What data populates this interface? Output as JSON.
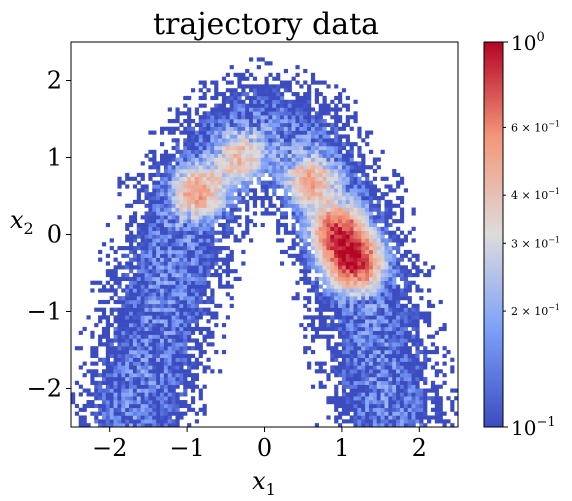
{
  "chart_data": {
    "type": "heatmap",
    "title": "trajectory data",
    "xlabel_base": "x",
    "xlabel_sub": "1",
    "ylabel_base": "x",
    "ylabel_sub": "2",
    "xlim": [
      -2.5,
      2.5
    ],
    "ylim": [
      -2.5,
      2.5
    ],
    "x_ticks": [
      -2,
      -1,
      0,
      1,
      2
    ],
    "y_ticks": [
      -2,
      -1,
      0,
      1,
      2
    ],
    "tick_labels_x": [
      "−2",
      "−1",
      "0",
      "1",
      "2"
    ],
    "tick_labels_y": [
      "−2",
      "−1",
      "0",
      "1",
      "2"
    ],
    "bins": 100,
    "colormap": "coolwarm",
    "colorbar": {
      "scale": "log",
      "range": [
        0.1,
        1.0
      ],
      "major_ticks": [
        {
          "value": 1.0,
          "base": "10",
          "exp": "0"
        },
        {
          "value": 0.1,
          "base": "10",
          "exp": "−1"
        }
      ],
      "minor_ticks": [
        {
          "value": 0.6,
          "mant": "6",
          "base": "10",
          "exp": "−1"
        },
        {
          "value": 0.4,
          "mant": "4",
          "base": "10",
          "exp": "−1"
        },
        {
          "value": 0.3,
          "mant": "3",
          "base": "10",
          "exp": "−1"
        },
        {
          "value": 0.2,
          "mant": "2",
          "base": "10",
          "exp": "−1"
        }
      ]
    },
    "density_shape": {
      "description_free": true,
      "arch_curve": [
        [
          -1.7,
          -2.4
        ],
        [
          -1.4,
          -1.2
        ],
        [
          -1.0,
          0.4
        ],
        [
          -0.5,
          1.1
        ],
        [
          0.0,
          1.35
        ],
        [
          0.5,
          1.1
        ],
        [
          0.9,
          0.4
        ],
        [
          1.2,
          -0.4
        ],
        [
          1.4,
          -1.2
        ],
        [
          1.6,
          -2.3
        ]
      ],
      "hotspots": [
        {
          "x": 1.15,
          "y": -0.35,
          "level": 1.0
        },
        {
          "x": 0.95,
          "y": 0.05,
          "level": 0.75
        },
        {
          "x": -0.85,
          "y": 0.55,
          "level": 0.5
        },
        {
          "x": 0.6,
          "y": 0.7,
          "level": 0.45
        },
        {
          "x": -0.3,
          "y": 1.0,
          "level": 0.35
        }
      ]
    }
  }
}
